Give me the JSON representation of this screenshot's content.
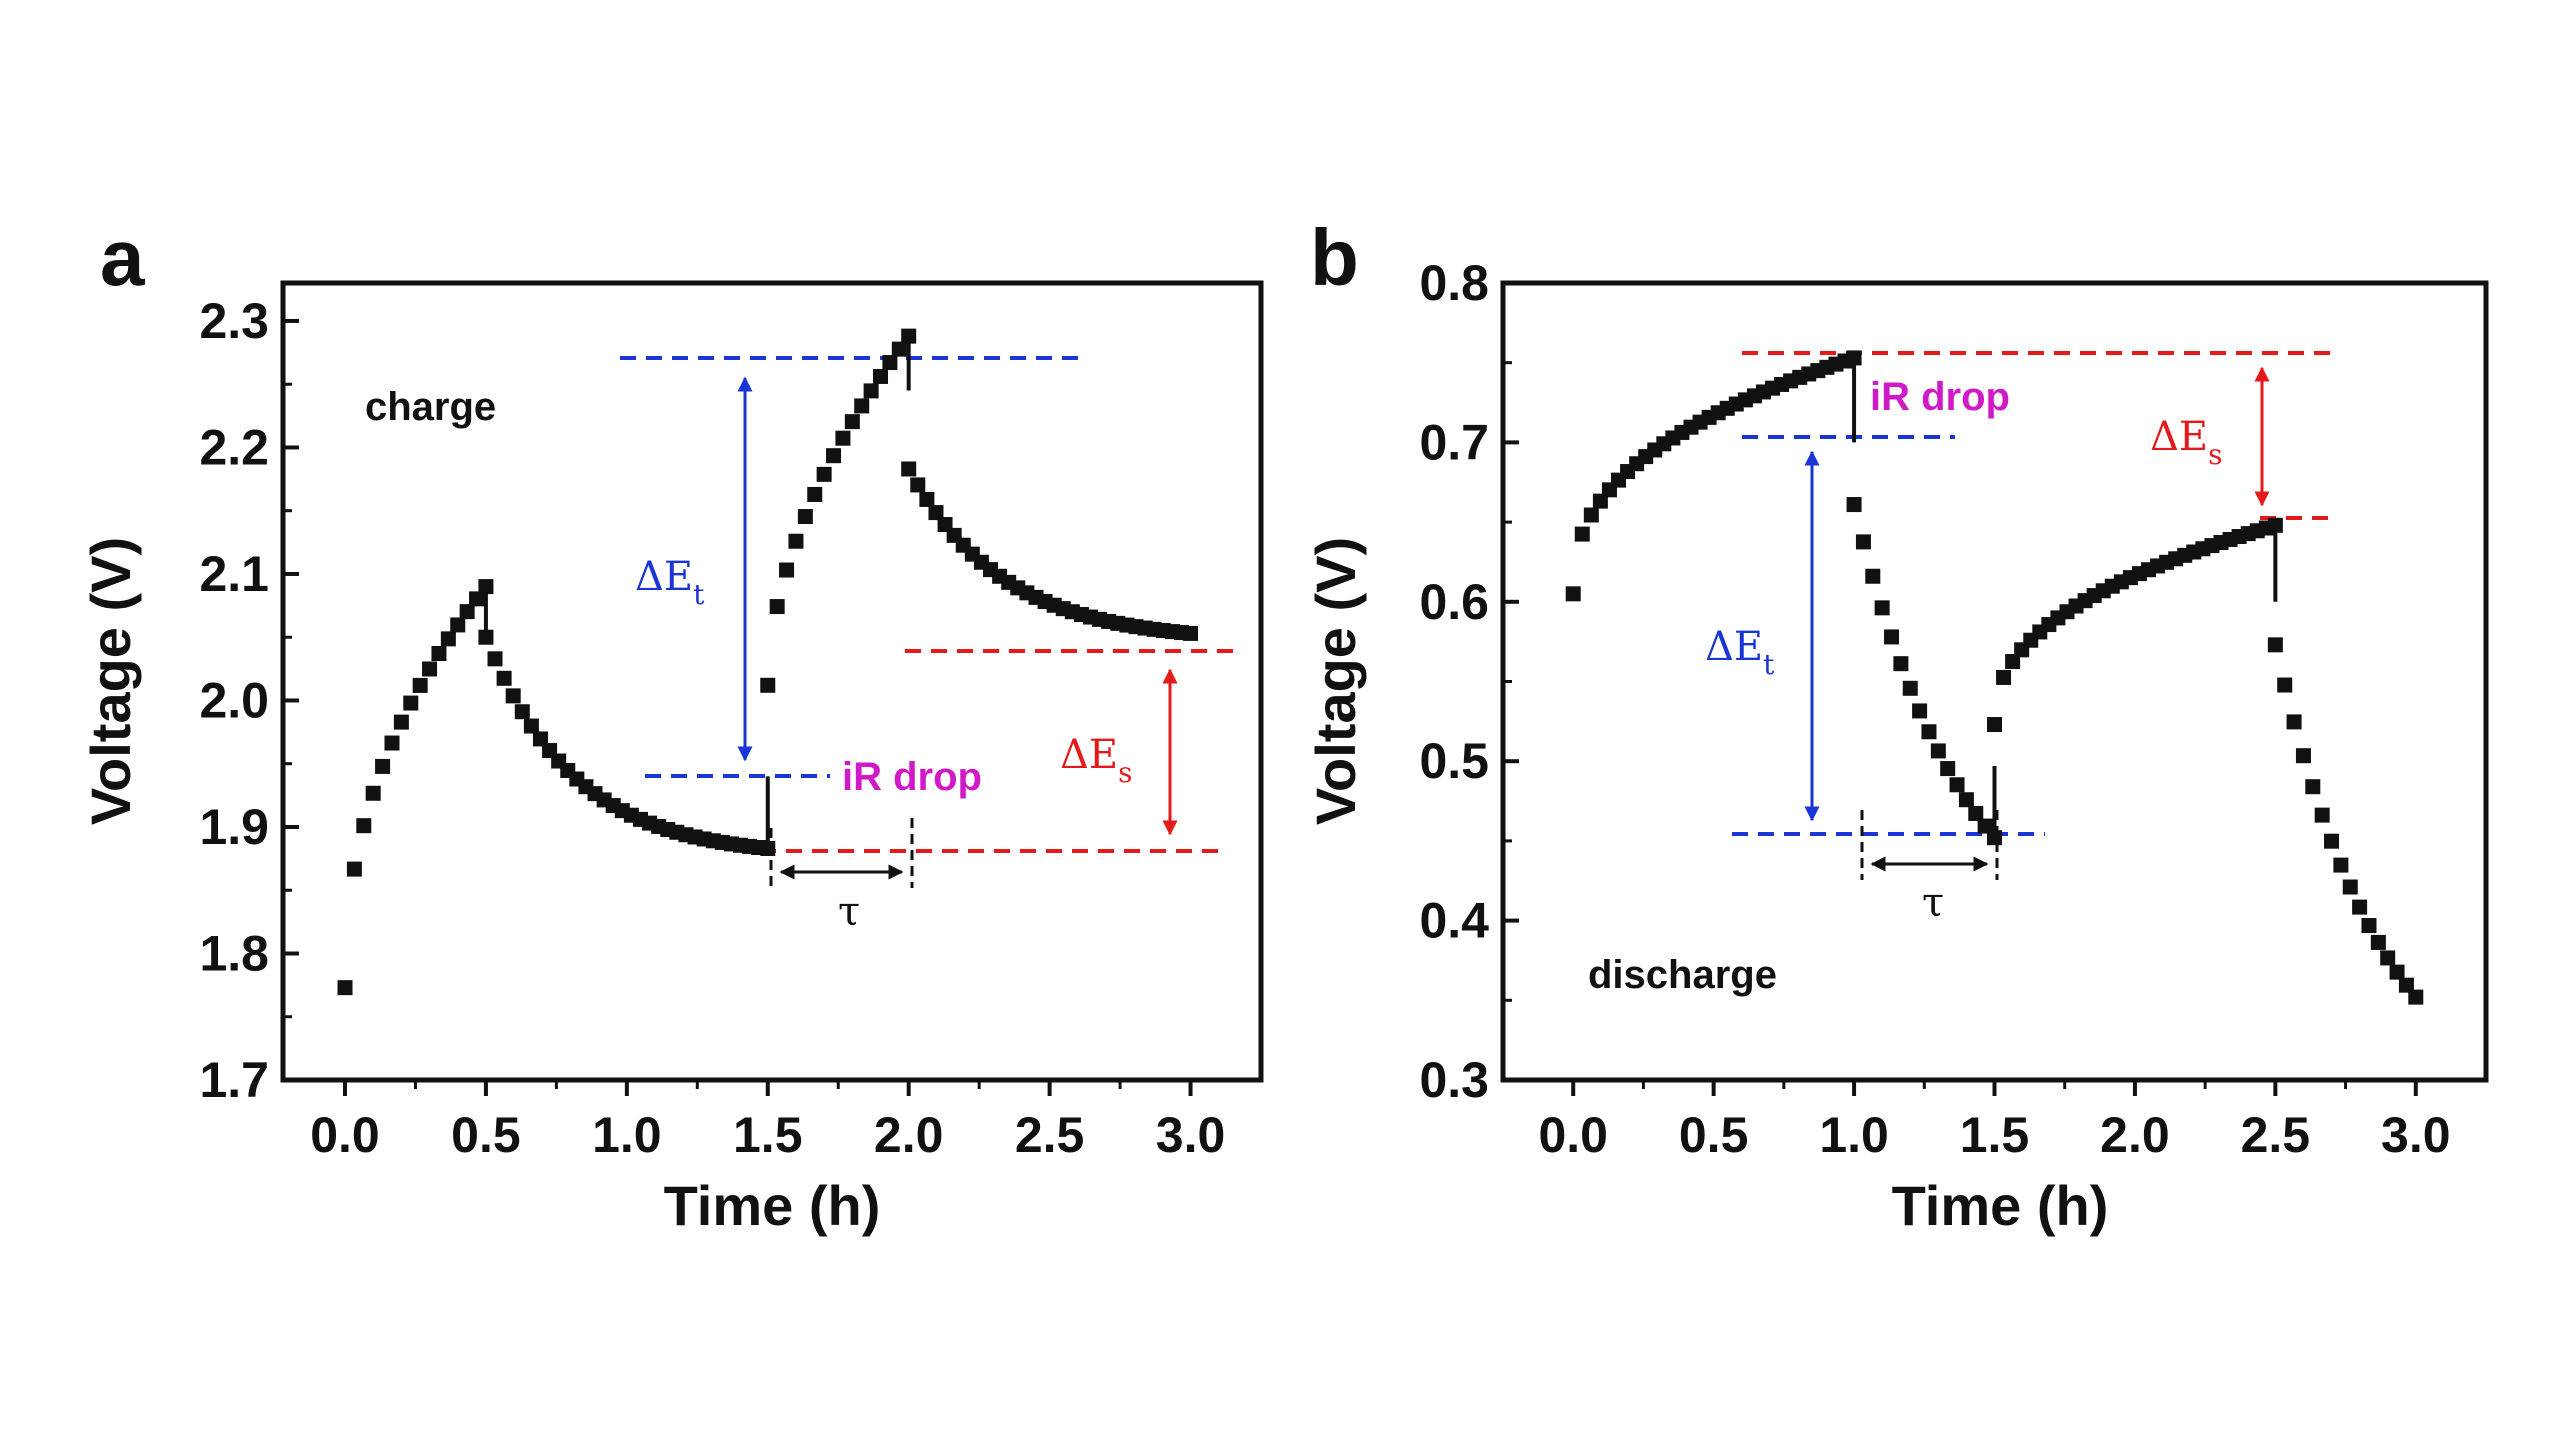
{
  "colors": {
    "annot_blue": "#1a35d6",
    "annot_red": "#e41a1a",
    "annot_magenta": "#d11ac7",
    "marker": "#111111"
  },
  "chart_data": [
    {
      "panel": "a",
      "type": "scatter",
      "xlabel": "Time (h)",
      "ylabel": "Voltage (V)",
      "xlim": [
        -0.22,
        3.25
      ],
      "ylim": [
        1.7,
        2.33
      ],
      "xticks": [
        0.0,
        0.5,
        1.0,
        1.5,
        2.0,
        2.5,
        3.0
      ],
      "xtick_labels": [
        "0.0",
        "0.5",
        "1.0",
        "1.5",
        "2.0",
        "2.5",
        "3.0"
      ],
      "yticks": [
        1.7,
        1.8,
        1.9,
        2.0,
        2.1,
        2.2,
        2.3
      ],
      "ytick_labels": [
        "1.7",
        "1.8",
        "1.9",
        "2.0",
        "2.1",
        "2.2",
        "2.3"
      ],
      "segments": [
        {
          "kind": "rise",
          "t0": 0.0,
          "t1": 0.5,
          "v0": 1.773,
          "v1": 2.09,
          "n": 16,
          "shape": 0.45
        },
        {
          "kind": "relax",
          "t0": 0.5,
          "t1": 1.5,
          "v0": 2.05,
          "v1": 1.883,
          "n": 32,
          "shape": 3.2
        },
        {
          "kind": "rise",
          "t0": 1.5,
          "t1": 2.0,
          "v0": 2.012,
          "v1": 2.288,
          "n": 16,
          "shape": 0.55
        },
        {
          "kind": "relax",
          "t0": 2.0,
          "t1": 3.0,
          "v0": 2.183,
          "v1": 2.053,
          "n": 32,
          "shape": 3.0
        }
      ],
      "drops": [
        {
          "t": 0.5,
          "v_top": 2.09,
          "v_bottom": 2.05
        },
        {
          "t": 1.5,
          "v_top": 1.94,
          "v_bottom": 1.883
        },
        {
          "t": 2.0,
          "v_top": 2.288,
          "v_bottom": 2.245
        }
      ],
      "annotations": {
        "state_label": "charge",
        "ir_drop_label": "iR drop",
        "delta_et_label": "ΔE",
        "delta_et_sub": "t",
        "delta_es_label": "ΔE",
        "delta_es_sub": "s",
        "tau_label": "τ"
      }
    },
    {
      "panel": "b",
      "type": "scatter",
      "xlabel": "Time (h)",
      "ylabel": "Voltage (V)",
      "xlim": [
        -0.25,
        3.25
      ],
      "ylim": [
        0.3,
        0.8
      ],
      "xticks": [
        0.0,
        0.5,
        1.0,
        1.5,
        2.0,
        2.5,
        3.0
      ],
      "xtick_labels": [
        "0.0",
        "0.5",
        "1.0",
        "1.5",
        "2.0",
        "2.5",
        "3.0"
      ],
      "yticks": [
        0.3,
        0.4,
        0.5,
        0.6,
        0.7,
        0.8
      ],
      "ytick_labels": [
        "0.3",
        "0.4",
        "0.5",
        "0.6",
        "0.7",
        "0.8"
      ],
      "segments": [
        {
          "kind": "rise",
          "t0": 0.0,
          "t1": 1.0,
          "v0": 0.605,
          "v1": 0.753,
          "n": 32,
          "shape": 0.4
        },
        {
          "kind": "relax",
          "t0": 1.0,
          "t1": 1.5,
          "v0": 0.661,
          "v1": 0.452,
          "n": 16,
          "shape": 1.25
        },
        {
          "kind": "rise",
          "t0": 1.5,
          "t1": 2.5,
          "v0": 0.523,
          "v1": 0.648,
          "n": 32,
          "shape": 0.42
        },
        {
          "kind": "relax",
          "t0": 2.5,
          "t1": 3.0,
          "v0": 0.573,
          "v1": 0.352,
          "n": 16,
          "shape": 1.3
        }
      ],
      "drops": [
        {
          "t": 1.0,
          "v_top": 0.753,
          "v_bottom": 0.7
        },
        {
          "t": 1.5,
          "v_top": 0.497,
          "v_bottom": 0.452
        },
        {
          "t": 2.5,
          "v_top": 0.648,
          "v_bottom": 0.6
        }
      ],
      "annotations": {
        "state_label": "discharge",
        "ir_drop_label": "iR drop",
        "delta_et_label": "ΔE",
        "delta_et_sub": "t",
        "delta_es_label": "ΔE",
        "delta_es_sub": "s",
        "tau_label": "τ"
      }
    }
  ]
}
